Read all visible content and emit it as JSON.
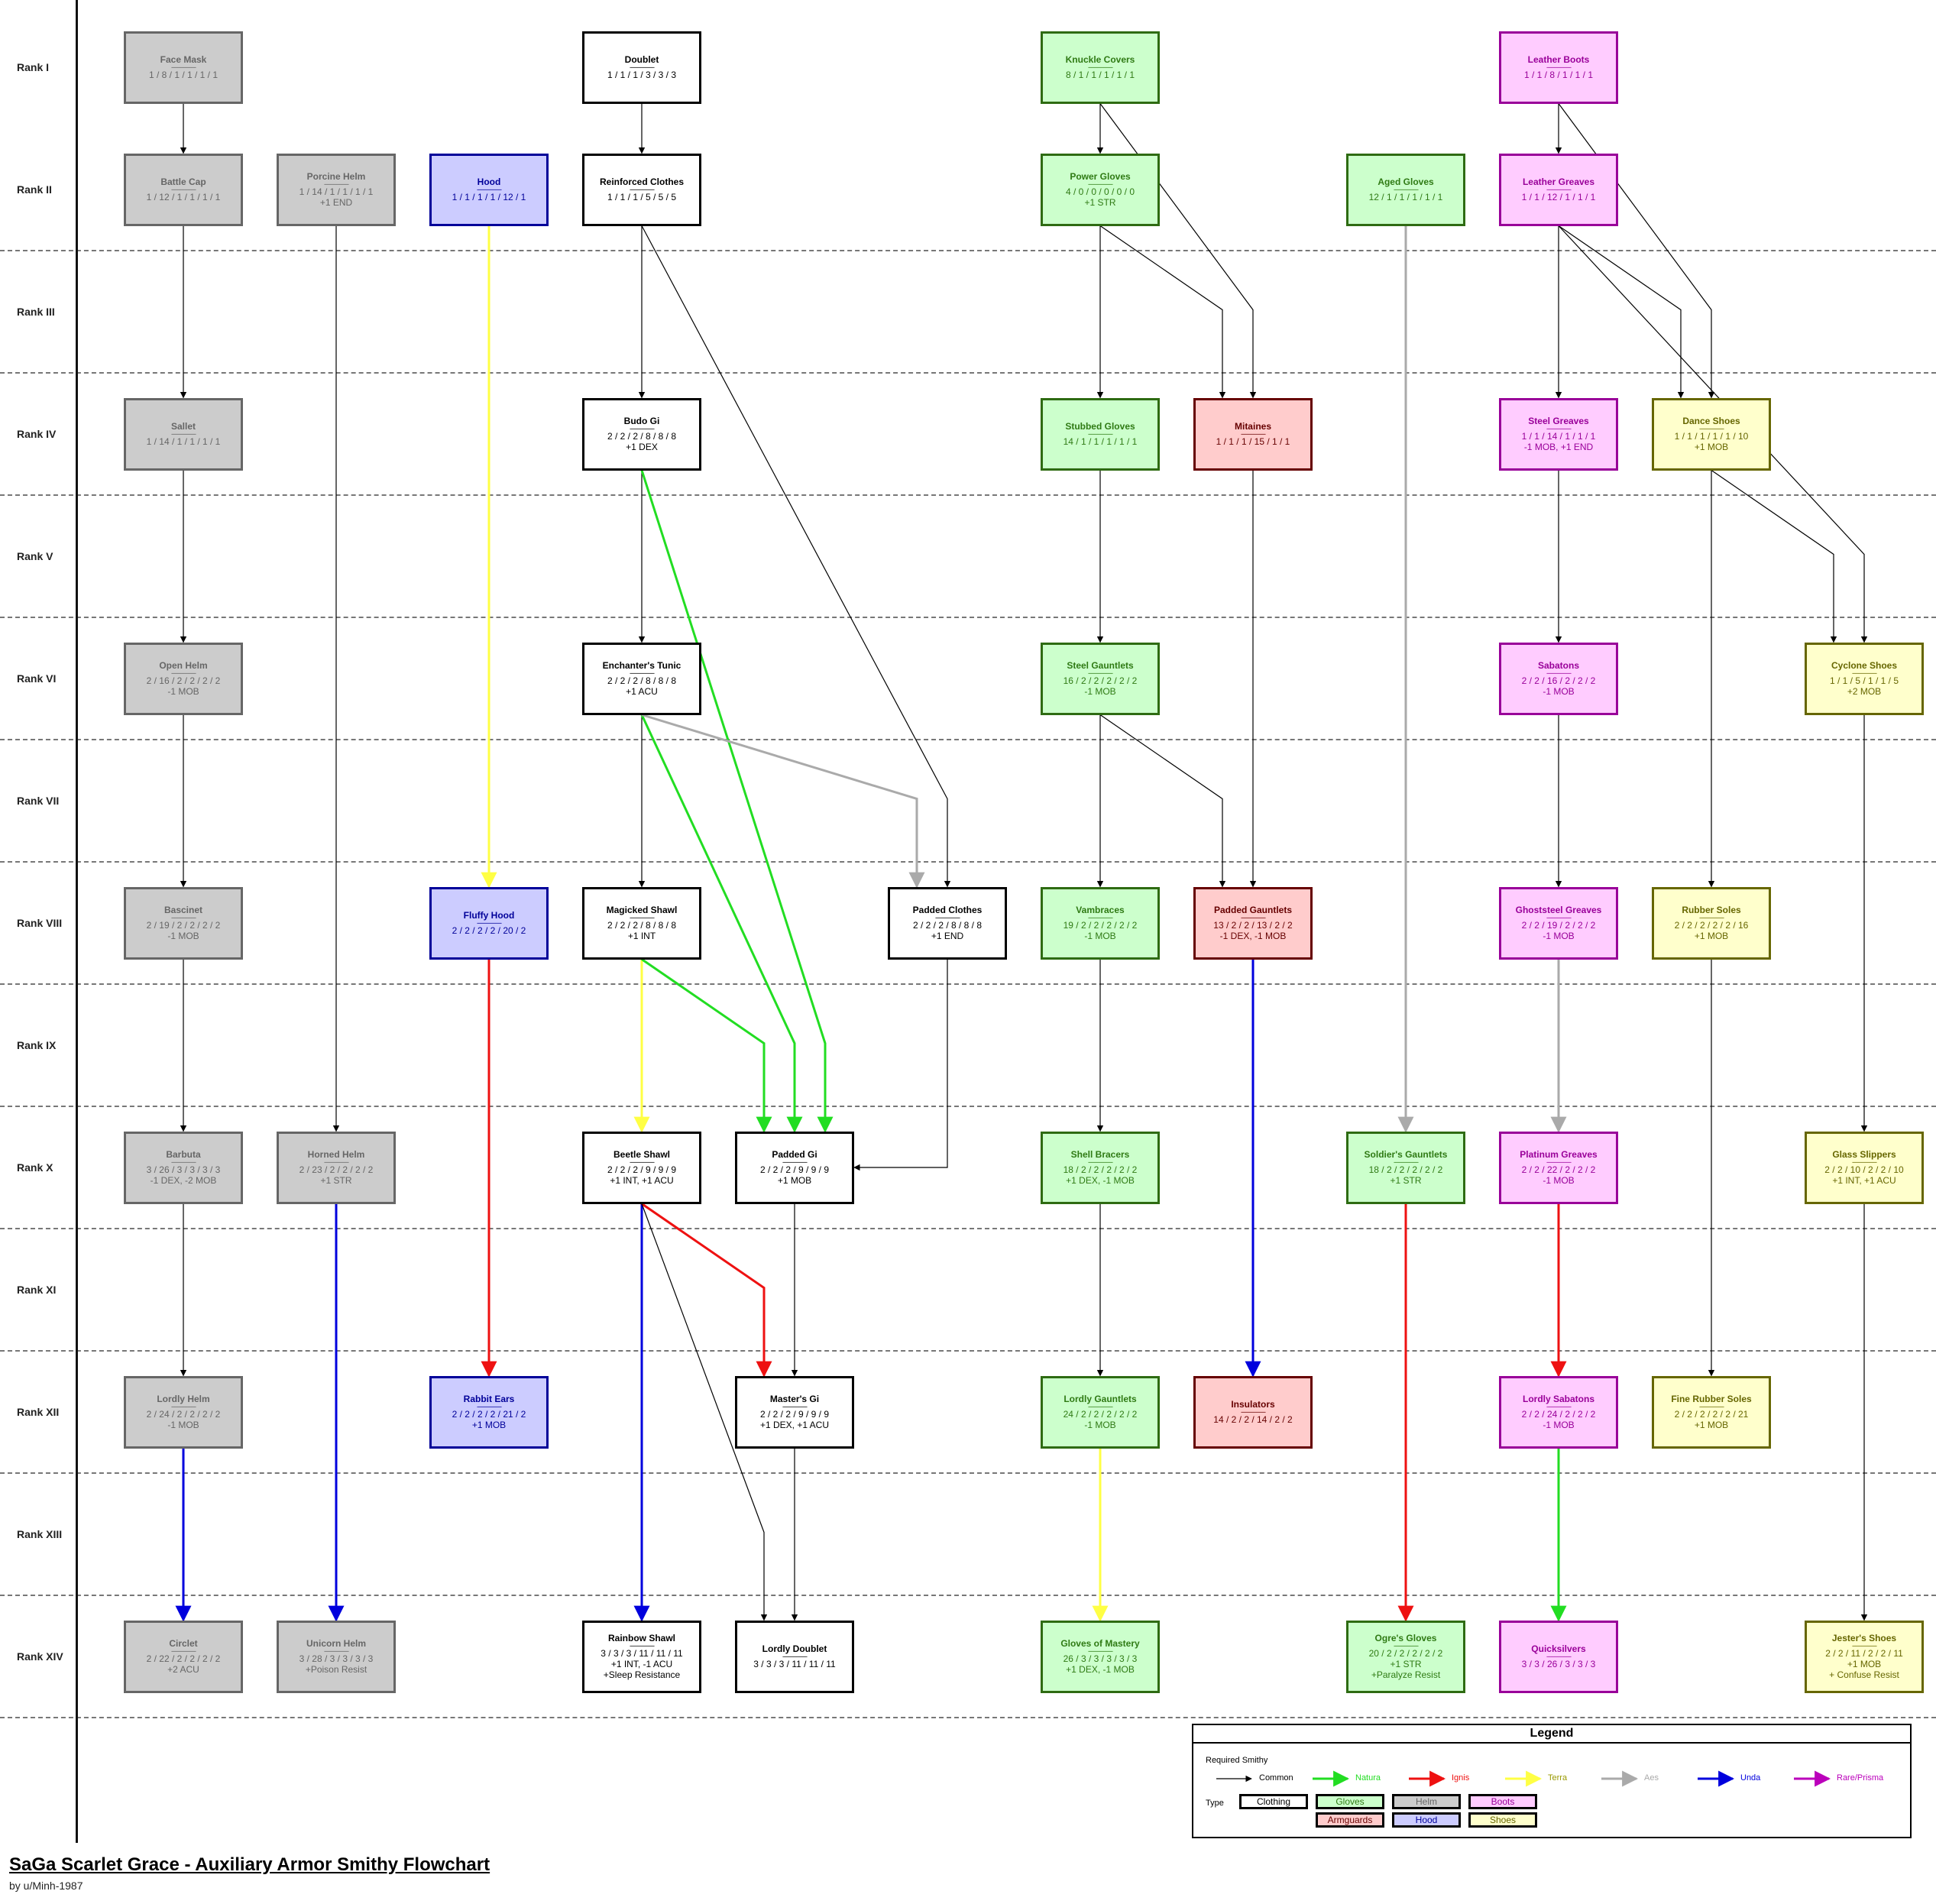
{
  "title": "SaGa Scarlet Grace - Auxiliary Armor Smithy Flowchart",
  "byline": "by u/Minh-1987",
  "ranks": [
    "Rank I",
    "Rank II",
    "Rank III",
    "Rank IV",
    "Rank V",
    "Rank VI",
    "Rank VII",
    "Rank VIII",
    "Rank IX",
    "Rank X",
    "Rank XI",
    "Rank XII",
    "Rank XIII",
    "Rank XIV"
  ],
  "separator": "----------------",
  "colors": {
    "common": "#000000",
    "natura": "#22dd22",
    "ignis": "#ee1111",
    "terra": "#ffff44",
    "aes": "#aaaaaa",
    "unda": "#0000dd",
    "rare": "#bb00bb"
  },
  "nodes": [
    {
      "id": "face-mask",
      "name": "Face Mask",
      "stats": "1 / 8 / 1 / 1 / 1 / 1",
      "extra": "",
      "type": "helm",
      "col": 0,
      "rank": 0
    },
    {
      "id": "doublet",
      "name": "Doublet",
      "stats": "1 / 1 / 1 / 3 / 3 / 3",
      "extra": "",
      "type": "clothing",
      "col": 3,
      "rank": 0
    },
    {
      "id": "knuckle-covers",
      "name": "Knuckle Covers",
      "stats": "8 / 1 / 1 / 1 / 1 / 1",
      "extra": "",
      "type": "gloves",
      "col": 6,
      "rank": 0
    },
    {
      "id": "leather-boots",
      "name": "Leather Boots",
      "stats": "1 / 1 / 8 / 1 / 1 / 1",
      "extra": "",
      "type": "boots",
      "col": 9,
      "rank": 0
    },
    {
      "id": "battle-cap",
      "name": "Battle Cap",
      "stats": "1 / 12 / 1 / 1 / 1 / 1",
      "extra": "",
      "type": "helm",
      "col": 0,
      "rank": 1
    },
    {
      "id": "porcine-helm",
      "name": "Porcine Helm",
      "stats": "1 / 14 / 1 / 1 / 1 / 1",
      "extra": "+1 END",
      "type": "helm",
      "col": 1,
      "rank": 1
    },
    {
      "id": "hood",
      "name": "Hood",
      "stats": "1 / 1 / 1 / 1 / 12 / 1",
      "extra": "",
      "type": "hood",
      "col": 2,
      "rank": 1
    },
    {
      "id": "reinforced-clothes",
      "name": "Reinforced Clothes",
      "stats": "1 / 1 / 1 / 5 / 5 / 5",
      "extra": "",
      "type": "clothing",
      "col": 3,
      "rank": 1
    },
    {
      "id": "power-gloves",
      "name": "Power Gloves",
      "stats": "4 / 0 / 0 / 0 / 0 / 0",
      "extra": "+1 STR",
      "type": "gloves",
      "col": 6,
      "rank": 1
    },
    {
      "id": "aged-gloves",
      "name": "Aged Gloves",
      "stats": "12 / 1 / 1 / 1 / 1 / 1",
      "extra": "",
      "type": "gloves",
      "col": 8,
      "rank": 1
    },
    {
      "id": "leather-greaves",
      "name": "Leather Greaves",
      "stats": "1 / 1 / 12 / 1 / 1 / 1",
      "extra": "",
      "type": "boots",
      "col": 9,
      "rank": 1
    },
    {
      "id": "sallet",
      "name": "Sallet",
      "stats": "1 / 14 / 1 / 1 / 1 / 1",
      "extra": "",
      "type": "helm",
      "col": 0,
      "rank": 3
    },
    {
      "id": "budo-gi",
      "name": "Budo Gi",
      "stats": "2 / 2 / 2 / 8 / 8 / 8",
      "extra": "+1 DEX",
      "type": "clothing",
      "col": 3,
      "rank": 3
    },
    {
      "id": "stubbed-gloves",
      "name": "Stubbed Gloves",
      "stats": "14 / 1 / 1 / 1 / 1 / 1",
      "extra": "",
      "type": "gloves",
      "col": 6,
      "rank": 3
    },
    {
      "id": "mitaines",
      "name": "Mitaines",
      "stats": "1 / 1 / 1 / 15 / 1 / 1",
      "extra": "",
      "type": "armguards",
      "col": 7,
      "rank": 3
    },
    {
      "id": "steel-greaves",
      "name": "Steel Greaves",
      "stats": "1 / 1 / 14 / 1 / 1 / 1",
      "extra": "-1 MOB, +1 END",
      "type": "boots",
      "col": 9,
      "rank": 3
    },
    {
      "id": "dance-shoes",
      "name": "Dance Shoes",
      "stats": "1 / 1 / 1 / 1 / 1 / 10",
      "extra": "+1 MOB",
      "type": "shoes",
      "col": 10,
      "rank": 3
    },
    {
      "id": "open-helm",
      "name": "Open Helm",
      "stats": "2 / 16 / 2 / 2 / 2 / 2",
      "extra": "-1 MOB",
      "type": "helm",
      "col": 0,
      "rank": 5
    },
    {
      "id": "enchanters-tunic",
      "name": "Enchanter's Tunic",
      "stats": "2 / 2 / 2 / 8 / 8 / 8",
      "extra": "+1 ACU",
      "type": "clothing",
      "col": 3,
      "rank": 5
    },
    {
      "id": "steel-gauntlets",
      "name": "Steel Gauntlets",
      "stats": "16 / 2 / 2 / 2 / 2 / 2",
      "extra": "-1 MOB",
      "type": "gloves",
      "col": 6,
      "rank": 5
    },
    {
      "id": "sabatons",
      "name": "Sabatons",
      "stats": "2 / 2 / 16 / 2 / 2 / 2",
      "extra": "-1 MOB",
      "type": "boots",
      "col": 9,
      "rank": 5
    },
    {
      "id": "cyclone-shoes",
      "name": "Cyclone Shoes",
      "stats": "1 / 1 / 5 / 1 / 1 / 5",
      "extra": "+2 MOB",
      "type": "shoes",
      "col": 11,
      "rank": 5
    },
    {
      "id": "bascinet",
      "name": "Bascinet",
      "stats": "2 / 19 / 2 / 2 / 2 / 2",
      "extra": "-1 MOB",
      "type": "helm",
      "col": 0,
      "rank": 7
    },
    {
      "id": "fluffy-hood",
      "name": "Fluffy Hood",
      "stats": "2 / 2 / 2 / 2 / 20 / 2",
      "extra": "",
      "type": "hood",
      "col": 2,
      "rank": 7
    },
    {
      "id": "magicked-shawl",
      "name": "Magicked Shawl",
      "stats": "2 / 2 / 2 / 8 / 8 / 8",
      "extra": "+1 INT",
      "type": "clothing",
      "col": 3,
      "rank": 7
    },
    {
      "id": "padded-clothes",
      "name": "Padded Clothes",
      "stats": "2 / 2 / 2 / 8 / 8 / 8",
      "extra": "+1 END",
      "type": "clothing",
      "col": 5,
      "rank": 7
    },
    {
      "id": "vambraces",
      "name": "Vambraces",
      "stats": "19 / 2 / 2 / 2 / 2 / 2",
      "extra": "-1 MOB",
      "type": "gloves",
      "col": 6,
      "rank": 7
    },
    {
      "id": "padded-gauntlets",
      "name": "Padded Gauntlets",
      "stats": "13 / 2 / 2 / 13 / 2 / 2",
      "extra": "-1 DEX, -1 MOB",
      "type": "armguards",
      "col": 7,
      "rank": 7
    },
    {
      "id": "ghoststeel-greaves",
      "name": "Ghoststeel Greaves",
      "stats": "2 / 2 / 19 / 2 / 2 / 2",
      "extra": "-1 MOB",
      "type": "boots",
      "col": 9,
      "rank": 7
    },
    {
      "id": "rubber-soles",
      "name": "Rubber Soles",
      "stats": "2 / 2 / 2 / 2 / 2 / 16",
      "extra": "+1 MOB",
      "type": "shoes",
      "col": 10,
      "rank": 7
    },
    {
      "id": "barbuta",
      "name": "Barbuta",
      "stats": "3 / 26 / 3 / 3 / 3 / 3",
      "extra": "-1 DEX, -2 MOB",
      "type": "helm",
      "col": 0,
      "rank": 9
    },
    {
      "id": "horned-helm",
      "name": "Horned Helm",
      "stats": "2 / 23 / 2 / 2 / 2 / 2",
      "extra": "+1 STR",
      "type": "helm",
      "col": 1,
      "rank": 9
    },
    {
      "id": "beetle-shawl",
      "name": "Beetle Shawl",
      "stats": "2 / 2 / 2 / 9 / 9 / 9",
      "extra": "+1 INT, +1 ACU",
      "type": "clothing",
      "col": 3,
      "rank": 9
    },
    {
      "id": "padded-gi",
      "name": "Padded Gi",
      "stats": "2 / 2 / 2 / 9 / 9 / 9",
      "extra": "+1 MOB",
      "type": "clothing",
      "col": 4,
      "rank": 9
    },
    {
      "id": "shell-bracers",
      "name": "Shell Bracers",
      "stats": "18 / 2 / 2 / 2 / 2 / 2",
      "extra": "+1 DEX, -1 MOB",
      "type": "gloves",
      "col": 6,
      "rank": 9
    },
    {
      "id": "soldiers-gauntlets",
      "name": "Soldier's Gauntlets",
      "stats": "18 / 2 / 2 / 2 / 2 / 2",
      "extra": "+1 STR",
      "type": "gloves",
      "col": 8,
      "rank": 9
    },
    {
      "id": "platinum-greaves",
      "name": "Platinum Greaves",
      "stats": "2 / 2 / 22 / 2 / 2 / 2",
      "extra": "-1 MOB",
      "type": "boots",
      "col": 9,
      "rank": 9
    },
    {
      "id": "glass-slippers",
      "name": "Glass Slippers",
      "stats": "2 / 2 / 10 / 2 / 2 / 10",
      "extra": "+1 INT, +1 ACU",
      "type": "shoes",
      "col": 11,
      "rank": 9
    },
    {
      "id": "lordly-helm",
      "name": "Lordly Helm",
      "stats": "2 / 24 / 2 / 2 / 2 / 2",
      "extra": "-1 MOB",
      "type": "helm",
      "col": 0,
      "rank": 11
    },
    {
      "id": "rabbit-ears",
      "name": "Rabbit Ears",
      "stats": "2 / 2 / 2 / 2 / 21 / 2",
      "extra": "+1 MOB",
      "type": "hood",
      "col": 2,
      "rank": 11
    },
    {
      "id": "masters-gi",
      "name": "Master's Gi",
      "stats": "2 / 2 / 2 / 9 / 9 / 9",
      "extra": "+1 DEX, +1 ACU",
      "type": "clothing",
      "col": 4,
      "rank": 11
    },
    {
      "id": "lordly-gauntlets",
      "name": "Lordly Gauntlets",
      "stats": "24 / 2 / 2 / 2 / 2 / 2",
      "extra": "-1 MOB",
      "type": "gloves",
      "col": 6,
      "rank": 11
    },
    {
      "id": "insulators",
      "name": "Insulators",
      "stats": "14 / 2 / 2 / 14 / 2 / 2",
      "extra": "",
      "type": "armguards",
      "col": 7,
      "rank": 11
    },
    {
      "id": "lordly-sabatons",
      "name": "Lordly Sabatons",
      "stats": "2 / 2 / 24 / 2 / 2 / 2",
      "extra": "-1 MOB",
      "type": "boots",
      "col": 9,
      "rank": 11
    },
    {
      "id": "fine-rubber-soles",
      "name": "Fine Rubber Soles",
      "stats": "2 / 2 / 2 / 2 / 2 / 21",
      "extra": "+1 MOB",
      "type": "shoes",
      "col": 10,
      "rank": 11
    },
    {
      "id": "circlet",
      "name": "Circlet",
      "stats": "2 / 22 / 2 / 2 / 2 / 2",
      "extra": "+2 ACU",
      "type": "helm",
      "col": 0,
      "rank": 13
    },
    {
      "id": "unicorn-helm",
      "name": "Unicorn Helm",
      "stats": "3 / 28 / 3 / 3 / 3 / 3",
      "extra": "+Poison Resist",
      "type": "helm",
      "col": 1,
      "rank": 13
    },
    {
      "id": "rainbow-shawl",
      "name": "Rainbow Shawl",
      "stats": "3 / 3 / 3 / 11 / 11 / 11",
      "extra": "+1 INT, -1 ACU",
      "extra2": "+Sleep Resistance",
      "type": "clothing",
      "col": 3,
      "rank": 13
    },
    {
      "id": "lordly-doublet",
      "name": "Lordly Doublet",
      "stats": "3 / 3 / 3 / 11 / 11 / 11",
      "extra": "",
      "type": "clothing",
      "col": 4,
      "rank": 13
    },
    {
      "id": "gloves-of-mastery",
      "name": "Gloves of Mastery",
      "stats": "26 / 3 / 3 / 3 / 3 / 3",
      "extra": "+1 DEX, -1 MOB",
      "type": "gloves",
      "col": 6,
      "rank": 13
    },
    {
      "id": "ogres-gloves",
      "name": "Ogre's Gloves",
      "stats": "20 / 2 / 2 / 2 / 2 / 2",
      "extra": "+1 STR",
      "extra2": "+Paralyze Resist",
      "type": "gloves",
      "col": 8,
      "rank": 13
    },
    {
      "id": "quicksilvers",
      "name": "Quicksilvers",
      "stats": "3 / 3 / 26 / 3 / 3 / 3",
      "extra": "",
      "type": "boots",
      "col": 9,
      "rank": 13
    },
    {
      "id": "jesters-shoes",
      "name": "Jester's Shoes",
      "stats": "2 / 2 / 11 / 2 / 2 / 11",
      "extra": "+1 MOB",
      "extra2": "+ Confuse Resist",
      "type": "shoes",
      "col": 11,
      "rank": 13
    }
  ],
  "edges": [
    {
      "from": "face-mask",
      "to": "battle-cap",
      "kind": "common"
    },
    {
      "from": "battle-cap",
      "to": "sallet",
      "kind": "common"
    },
    {
      "from": "sallet",
      "to": "open-helm",
      "kind": "common"
    },
    {
      "from": "open-helm",
      "to": "bascinet",
      "kind": "common"
    },
    {
      "from": "bascinet",
      "to": "barbuta",
      "kind": "common"
    },
    {
      "from": "barbuta",
      "to": "lordly-helm",
      "kind": "common"
    },
    {
      "from": "lordly-helm",
      "to": "circlet",
      "kind": "unda"
    },
    {
      "from": "porcine-helm",
      "to": "horned-helm",
      "kind": "common"
    },
    {
      "from": "horned-helm",
      "to": "unicorn-helm",
      "kind": "unda"
    },
    {
      "from": "hood",
      "to": "fluffy-hood",
      "kind": "terra"
    },
    {
      "from": "fluffy-hood",
      "to": "rabbit-ears",
      "kind": "ignis"
    },
    {
      "from": "doublet",
      "to": "reinforced-clothes",
      "kind": "common"
    },
    {
      "from": "reinforced-clothes",
      "to": "budo-gi",
      "kind": "common"
    },
    {
      "from": "reinforced-clothes",
      "to": "padded-clothes",
      "kind": "common",
      "route": "diag"
    },
    {
      "from": "budo-gi",
      "to": "enchanters-tunic",
      "kind": "common"
    },
    {
      "from": "budo-gi",
      "to": "padded-gi",
      "kind": "natura",
      "route": "diag",
      "via": 1080,
      "toOffset": 40
    },
    {
      "from": "enchanters-tunic",
      "to": "magicked-shawl",
      "kind": "common"
    },
    {
      "from": "enchanters-tunic",
      "to": "padded-gi",
      "kind": "natura",
      "route": "diag",
      "via": 1040,
      "toOffset": 0
    },
    {
      "from": "enchanters-tunic",
      "to": "padded-clothes",
      "kind": "aes",
      "route": "diag",
      "via": 1200,
      "toOffset": -40
    },
    {
      "from": "magicked-shawl",
      "to": "beetle-shawl",
      "kind": "terra"
    },
    {
      "from": "magicked-shawl",
      "to": "padded-gi",
      "kind": "natura",
      "route": "diag",
      "via": 1000,
      "toOffset": -40
    },
    {
      "from": "padded-clothes",
      "to": "padded-gi",
      "kind": "common",
      "route": "elbow-left"
    },
    {
      "from": "beetle-shawl",
      "to": "rainbow-shawl",
      "kind": "unda"
    },
    {
      "from": "beetle-shawl",
      "to": "masters-gi",
      "kind": "ignis",
      "route": "diag",
      "via": 1000,
      "toOffset": -40
    },
    {
      "from": "beetle-shawl",
      "to": "lordly-doublet",
      "kind": "common",
      "route": "diag",
      "via": 1000,
      "toOffset": -40
    },
    {
      "from": "padded-gi",
      "to": "masters-gi",
      "kind": "common"
    },
    {
      "from": "masters-gi",
      "to": "lordly-doublet",
      "kind": "common"
    },
    {
      "from": "knuckle-covers",
      "to": "power-gloves",
      "kind": "common"
    },
    {
      "from": "knuckle-covers",
      "to": "mitaines",
      "kind": "common",
      "route": "diag",
      "via": 1640,
      "toOffset": 0
    },
    {
      "from": "power-gloves",
      "to": "stubbed-gloves",
      "kind": "common"
    },
    {
      "from": "power-gloves",
      "to": "mitaines",
      "kind": "common",
      "route": "diag",
      "via": 1600,
      "toOffset": -40
    },
    {
      "from": "stubbed-gloves",
      "to": "steel-gauntlets",
      "kind": "common"
    },
    {
      "from": "steel-gauntlets",
      "to": "vambraces",
      "kind": "common"
    },
    {
      "from": "steel-gauntlets",
      "to": "padded-gauntlets",
      "kind": "common",
      "route": "diag",
      "via": 1600,
      "toOffset": -40
    },
    {
      "from": "mitaines",
      "to": "padded-gauntlets",
      "kind": "common"
    },
    {
      "from": "vambraces",
      "to": "shell-bracers",
      "kind": "common"
    },
    {
      "from": "shell-bracers",
      "to": "lordly-gauntlets",
      "kind": "common"
    },
    {
      "from": "lordly-gauntlets",
      "to": "gloves-of-mastery",
      "kind": "terra"
    },
    {
      "from": "padded-gauntlets",
      "to": "insulators",
      "kind": "unda"
    },
    {
      "from": "aged-gloves",
      "to": "soldiers-gauntlets",
      "kind": "aes"
    },
    {
      "from": "soldiers-gauntlets",
      "to": "ogres-gloves",
      "kind": "ignis"
    },
    {
      "from": "leather-boots",
      "to": "leather-greaves",
      "kind": "common"
    },
    {
      "from": "leather-boots",
      "to": "dance-shoes",
      "kind": "common",
      "route": "diag",
      "via": 2240,
      "toOffset": 0
    },
    {
      "from": "leather-greaves",
      "to": "steel-greaves",
      "kind": "common"
    },
    {
      "from": "leather-greaves",
      "to": "dance-shoes",
      "kind": "common",
      "route": "diag",
      "via": 2200,
      "toOffset": -40
    },
    {
      "from": "leather-greaves",
      "to": "cyclone-shoes",
      "kind": "common",
      "route": "diag",
      "via": 2440,
      "toOffset": 0
    },
    {
      "from": "steel-greaves",
      "to": "sabatons",
      "kind": "common"
    },
    {
      "from": "dance-shoes",
      "to": "rubber-soles",
      "kind": "common"
    },
    {
      "from": "dance-shoes",
      "to": "cyclone-shoes",
      "kind": "common",
      "route": "diag",
      "via": 2400,
      "toOffset": -40
    },
    {
      "from": "sabatons",
      "to": "ghoststeel-greaves",
      "kind": "common"
    },
    {
      "from": "ghoststeel-greaves",
      "to": "platinum-greaves",
      "kind": "aes"
    },
    {
      "from": "platinum-greaves",
      "to": "lordly-sabatons",
      "kind": "ignis"
    },
    {
      "from": "lordly-sabatons",
      "to": "quicksilvers",
      "kind": "natura"
    },
    {
      "from": "rubber-soles",
      "to": "fine-rubber-soles",
      "kind": "common"
    },
    {
      "from": "cyclone-shoes",
      "to": "glass-slippers",
      "kind": "common"
    },
    {
      "from": "glass-slippers",
      "to": "jesters-shoes",
      "kind": "common"
    }
  ],
  "legend": {
    "title": "Legend",
    "required_smithy": "Required Smithy",
    "type_label": "Type",
    "arrows": [
      {
        "label": "Common",
        "kind": "common"
      },
      {
        "label": "Natura",
        "kind": "natura"
      },
      {
        "label": "Ignis",
        "kind": "ignis"
      },
      {
        "label": "Terra",
        "kind": "terra"
      },
      {
        "label": "Aes",
        "kind": "aes"
      },
      {
        "label": "Unda",
        "kind": "unda"
      },
      {
        "label": "Rare/Prisma",
        "kind": "rare"
      }
    ],
    "types": [
      {
        "label": "Clothing",
        "type": "clothing"
      },
      {
        "label": "Gloves",
        "type": "gloves"
      },
      {
        "label": "Helm",
        "type": "helm"
      },
      {
        "label": "Boots",
        "type": "boots"
      },
      {
        "label": "Armguards",
        "type": "armguards"
      },
      {
        "label": "Hood",
        "type": "hood"
      },
      {
        "label": "Shoes",
        "type": "shoes"
      }
    ]
  }
}
